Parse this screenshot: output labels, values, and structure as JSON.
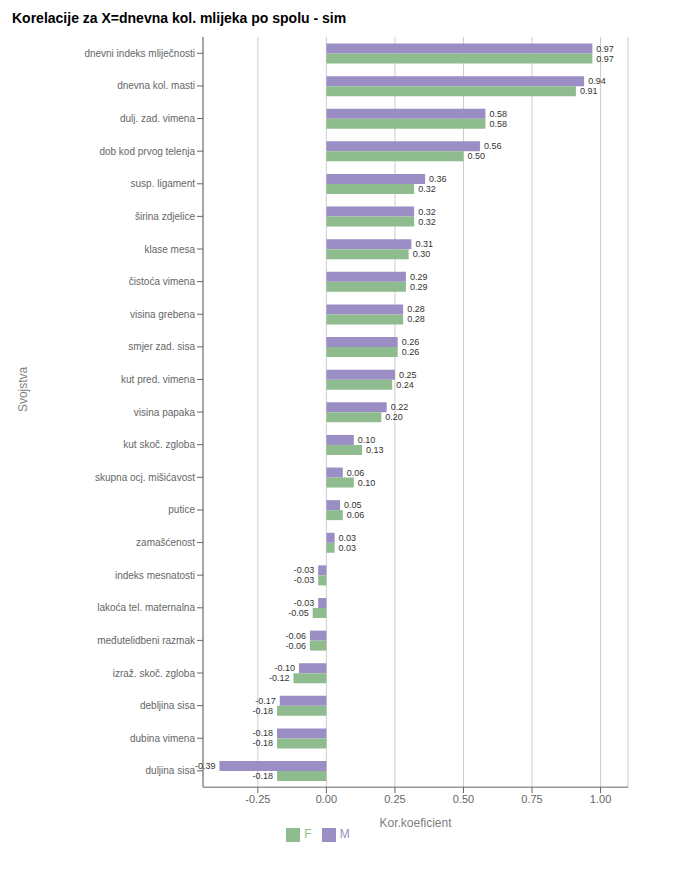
{
  "chart_data": {
    "type": "bar",
    "orientation": "horizontal",
    "title": "Korelacije za X=dnevna kol. mlijeka po spolu - sim",
    "xlabel": "Kor.koeficient",
    "ylabel": "Svojstva",
    "categories": [
      "dnevni indeks mliječnosti",
      "dnevna kol. masti",
      "dulj. zad. vimena",
      "dob kod prvog telenja",
      "susp. ligament",
      "širina zdjelice",
      "klase mesa",
      "čistoća vimena",
      "visina grebena",
      "smjer zad. sisa",
      "kut pred. vimena",
      "visina papaka",
      "kut skoč. zgloba",
      "skupna ocj. mišićavost",
      "putice",
      "zamašćenost",
      "indeks mesnatosti",
      "lakoća tel. maternalna",
      "međutelidbeni razmak",
      "izraž. skoč. zgloba",
      "debljina sisa",
      "dubina vimena",
      "duljina sisa"
    ],
    "series": [
      {
        "name": "M",
        "color": "#9b8ec4",
        "values": [
          0.97,
          0.94,
          0.58,
          0.56,
          0.36,
          0.32,
          0.31,
          0.29,
          0.28,
          0.26,
          0.25,
          0.22,
          0.1,
          0.06,
          0.05,
          0.03,
          -0.03,
          -0.03,
          -0.06,
          -0.1,
          -0.17,
          -0.18,
          -0.39
        ],
        "value_labels": [
          "0.97",
          "0.94",
          "0.58",
          "0.56",
          "0.36",
          "0.32",
          "0.31",
          "0.29",
          "0.28",
          "0.26",
          "0.25",
          "0.22",
          "0.10",
          "0.06",
          "0.05",
          "0.03",
          "-0.03",
          "-0.03",
          "-0.06",
          "-0.10",
          "-0.17",
          "-0.18",
          "-0.39"
        ]
      },
      {
        "name": "F",
        "color": "#8fbc8f",
        "values": [
          0.97,
          0.91,
          0.58,
          0.5,
          0.32,
          0.32,
          0.3,
          0.29,
          0.28,
          0.26,
          0.24,
          0.2,
          0.13,
          0.1,
          0.06,
          0.03,
          -0.03,
          -0.05,
          -0.06,
          -0.12,
          -0.18,
          -0.18,
          -0.18
        ],
        "value_labels": [
          "0.97",
          "0.91",
          "0.58",
          "0.50",
          "0.32",
          "0.32",
          "0.30",
          "0.29",
          "0.28",
          "0.26",
          "0.24",
          "0.20",
          "0.13",
          "0.10",
          "0.06",
          "0.03",
          "-0.03",
          "-0.05",
          "-0.06",
          "-0.12",
          "-0.18",
          "-0.18",
          "-0.18"
        ]
      }
    ],
    "xlim": [
      -0.45,
      1.1
    ],
    "xticks": [
      -0.25,
      {
        "value": 0,
        "label": "0.00"
      },
      0.25,
      {
        "value": 0.5,
        "label": "0.50"
      },
      0.75,
      {
        "value": 1,
        "label": "1.00"
      }
    ],
    "grid": true,
    "legend": "bottom",
    "data_labels": true
  }
}
